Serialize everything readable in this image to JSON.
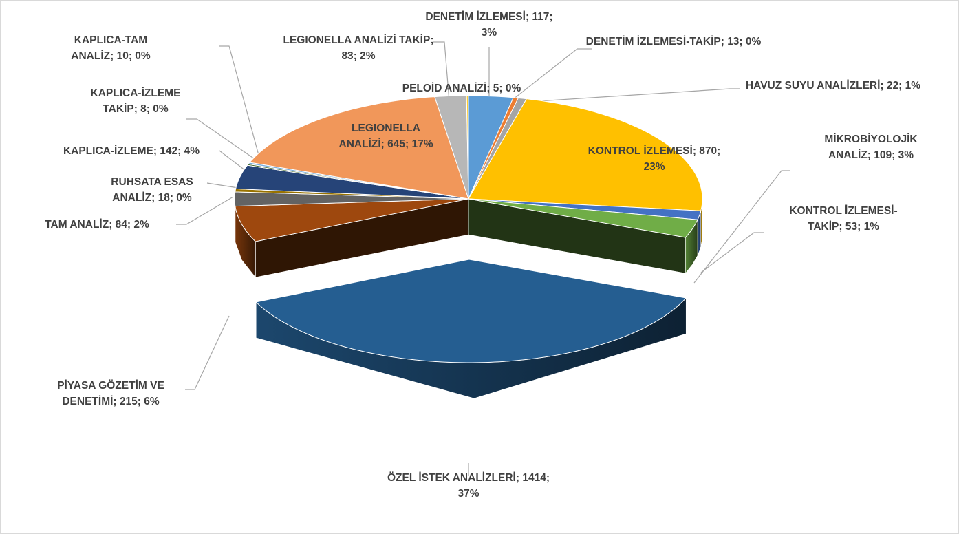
{
  "chart_data": {
    "type": "pie3d",
    "categories": [
      "DENETİM İZLEMESİ",
      "DENETİM İZLEMESİ-TAKİP",
      "HAVUZ SUYU ANALİZLERİ",
      "KONTROL İZLEMESİ",
      "KONTROL İZLEMESİ-TAKİP",
      "MİKROBİYOLOJİK ANALİZ",
      "ÖZEL İSTEK ANALİZLERİ",
      "PİYASA GÖZETİM VE DENETİMİ",
      "TAM ANALİZ",
      "RUHSATA ESAS ANALİZ",
      "KAPLICA-İZLEME",
      "KAPLICA-İZLEME TAKİP",
      "KAPLICA-TAM ANALİZ",
      "LEGIONELLA ANALİZİ",
      "LEGIONELLA ANALİZİ TAKİP",
      "PELOİD ANALİZİ"
    ],
    "values": [
      117,
      13,
      22,
      870,
      53,
      109,
      1414,
      215,
      84,
      18,
      142,
      8,
      10,
      645,
      83,
      5
    ],
    "percent_labels": [
      "3%",
      "0%",
      "1%",
      "23%",
      "1%",
      "3%",
      "37%",
      "6%",
      "2%",
      "0%",
      "4%",
      "0%",
      "0%",
      "17%",
      "2%",
      "0%"
    ],
    "label_separator": "; ",
    "colors": [
      "#5b9bd5",
      "#ed7d31",
      "#a5a5a5",
      "#ffc000",
      "#4472c4",
      "#70ad47",
      "#255e91",
      "#9e480e",
      "#636363",
      "#997300",
      "#264478",
      "#43682b",
      "#7cafdd",
      "#f1975a",
      "#b7b7b7",
      "#ffcd33"
    ],
    "exploded": [
      6
    ]
  }
}
